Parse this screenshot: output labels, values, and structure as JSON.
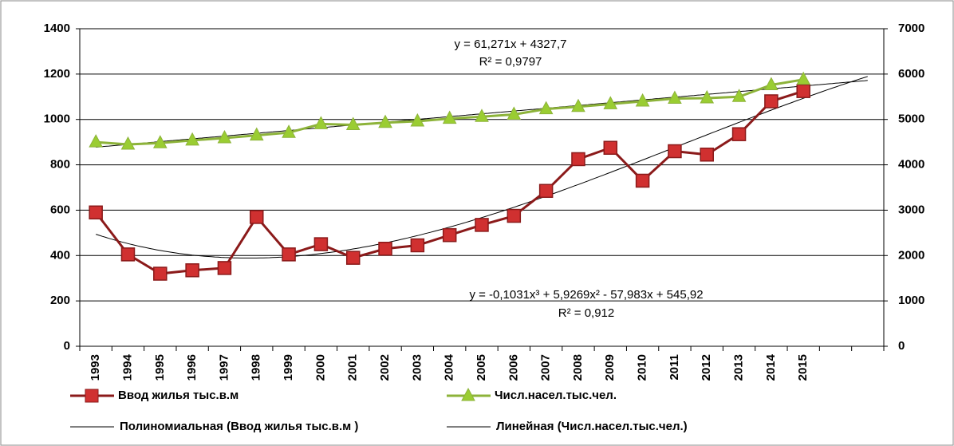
{
  "chart_data": {
    "type": "line",
    "categories": [
      "1993",
      "1994",
      "1995",
      "1996",
      "1997",
      "1998",
      "1999",
      "2000",
      "2001",
      "2002",
      "2003",
      "2004",
      "2005",
      "2006",
      "2007",
      "2008",
      "2009",
      "2010",
      "2011",
      "2012",
      "2013",
      "2014",
      "2015",
      null,
      null
    ],
    "series": [
      {
        "name": "Ввод жилья тыс.в.м",
        "color": "#8b1a1a",
        "marker_color": "#d03030",
        "marker": "square",
        "values": [
          590,
          405,
          320,
          335,
          345,
          570,
          405,
          450,
          390,
          430,
          445,
          490,
          535,
          575,
          685,
          825,
          875,
          730,
          860,
          845,
          935,
          1080,
          1125,
          null,
          null
        ]
      },
      {
        "name": "Числ.насел.тыс.чел.",
        "color": "#8db33a",
        "marker_color": "#9acd32",
        "marker": "triangle",
        "axis": "y2",
        "values": [
          4500,
          4450,
          4480,
          4540,
          4590,
          4650,
          4710,
          4900,
          4880,
          4930,
          4960,
          5020,
          5060,
          5110,
          5230,
          5280,
          5340,
          5400,
          5460,
          5470,
          5500,
          5760,
          5880,
          null,
          null
        ]
      }
    ],
    "trendlines": [
      {
        "name": "Полиномиальная (Ввод жилья тыс.в.м )",
        "series": 0,
        "kind": "polynomial",
        "coefficients": [
          545.92,
          -57.983,
          5.9269,
          -0.1031
        ],
        "equation": "y = -0,1031x³ + 5,9269x² - 57,983x + 545,92",
        "r2": 0.912,
        "r2_label": "R² = 0,912"
      },
      {
        "name": "Линейная (Числ.насел.тыс.чел.)",
        "series": 1,
        "kind": "linear",
        "axis": "y2",
        "coefficients": [
          4327.7,
          61.271
        ],
        "equation": "y = 61,271x + 4327,7",
        "r2": 0.9797,
        "r2_label": "R² = 0,9797"
      }
    ],
    "ylim": [
      0,
      1400
    ],
    "yticks": [
      0,
      200,
      400,
      600,
      800,
      1000,
      1200,
      1400
    ],
    "y2lim": [
      0,
      7000
    ],
    "y2ticks": [
      0,
      1000,
      2000,
      3000,
      4000,
      5000,
      6000,
      7000
    ],
    "grid": true,
    "legend": "bottom"
  }
}
